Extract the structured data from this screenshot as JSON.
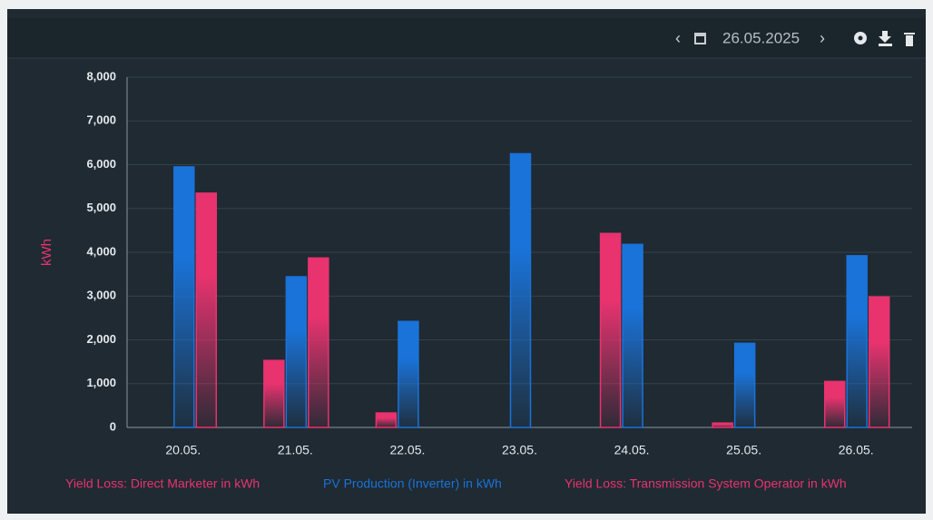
{
  "header": {
    "date": "26.05.2025"
  },
  "chart_data": {
    "type": "bar",
    "y_label": "kWh",
    "categories": [
      "20.05.",
      "21.05.",
      "22.05.",
      "23.05.",
      "24.05.",
      "25.05.",
      "26.05."
    ],
    "series": [
      {
        "name": "Yield Loss: Direct Marketer in kWh",
        "color": "#e8336f",
        "values": [
          0,
          1530,
          330,
          0,
          4430,
          100,
          1050
        ]
      },
      {
        "name": "PV Production (Inverter) in kWh",
        "color": "#1a73d9",
        "values": [
          5950,
          3440,
          2420,
          6250,
          4180,
          1920,
          3920
        ]
      },
      {
        "name": "Yield Loss: Transmission System Operator in kWh",
        "color": "#e8336f",
        "values": [
          5350,
          3870,
          0,
          0,
          0,
          0,
          2980
        ]
      }
    ],
    "ylim": [
      0,
      8000
    ],
    "yticks": [
      0,
      {
        "value": 1000,
        "label": "1,000"
      },
      {
        "value": 2000,
        "label": "2,000"
      },
      {
        "value": 3000,
        "label": "3,000"
      },
      {
        "value": 4000,
        "label": "4,000"
      },
      {
        "value": 5000,
        "label": "5,000"
      },
      {
        "value": 6000,
        "label": "6,000"
      },
      {
        "value": 7000,
        "label": "7,000"
      },
      {
        "value": 8000,
        "label": "8,000"
      }
    ],
    "grid": true
  }
}
